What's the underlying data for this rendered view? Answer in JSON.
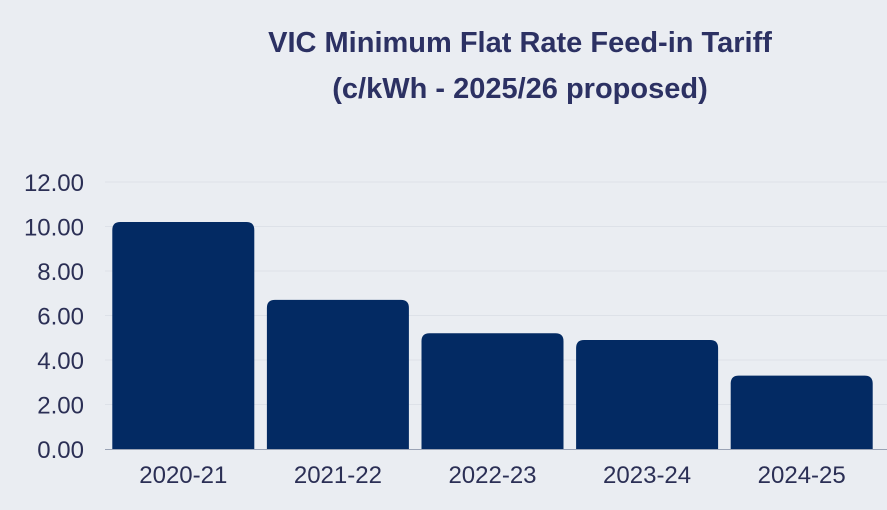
{
  "chart_data": {
    "type": "bar",
    "title": [
      "VIC Minimum Flat Rate Feed-in Tariff",
      "(c/kWh - 2025/26 proposed)"
    ],
    "categories": [
      "2020-21",
      "2021-22",
      "2022-23",
      "2023-24",
      "2024-25"
    ],
    "values": [
      10.2,
      6.7,
      5.2,
      4.9,
      3.3
    ],
    "xlabel": "",
    "ylabel": "",
    "ylim": [
      0,
      12
    ],
    "yticks": [
      "0.00",
      "2.00",
      "4.00",
      "6.00",
      "8.00",
      "10.00",
      "12.00"
    ],
    "grid": true,
    "legend": "none",
    "bar_color": "#032a63",
    "background": "#eaedf2"
  }
}
